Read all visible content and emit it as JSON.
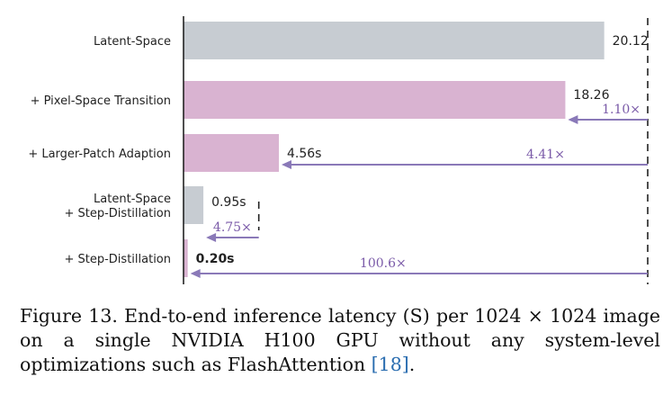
{
  "chart_data": {
    "type": "bar",
    "orientation": "horizontal",
    "categories": [
      "Latent-Space",
      "+ Pixel-Space Transition",
      "+ Larger-Patch Adaption",
      "Latent-Space\n+ Step-Distillation",
      "+ Step-Distillation"
    ],
    "values": [
      20.12,
      18.26,
      4.56,
      0.95,
      0.2
    ],
    "value_labels": [
      "20.12",
      "18.26",
      "4.56s",
      "0.95s",
      "0.20s"
    ],
    "bar_colors": [
      "#c7ccd2",
      "#d9b3d1",
      "#d9b3d1",
      "#c7ccd2",
      "#d9b3d1"
    ],
    "speedups": [
      {
        "label": "1.10×",
        "from_value": 22.2,
        "to_value": 18.26,
        "row": 1
      },
      {
        "label": "4.41×",
        "from_value": 22.2,
        "to_value": 4.56,
        "row": 2
      },
      {
        "label": "4.75×",
        "from_value": 3.6,
        "to_value": 0.95,
        "row": 3
      },
      {
        "label": "100.6×",
        "from_value": 22.2,
        "to_value": 0.2,
        "row": 4
      }
    ],
    "arrow_color": "#8a79b8",
    "xlim": [
      0,
      22.2
    ],
    "grid": false
  },
  "caption": {
    "main": "Figure 13. End-to-end inference latency (S) per 1024 × 1024 image on a single NVIDIA H100 GPU without any system-level optimizations such as FlashAttention ",
    "ref": "[18]",
    "end": "."
  }
}
